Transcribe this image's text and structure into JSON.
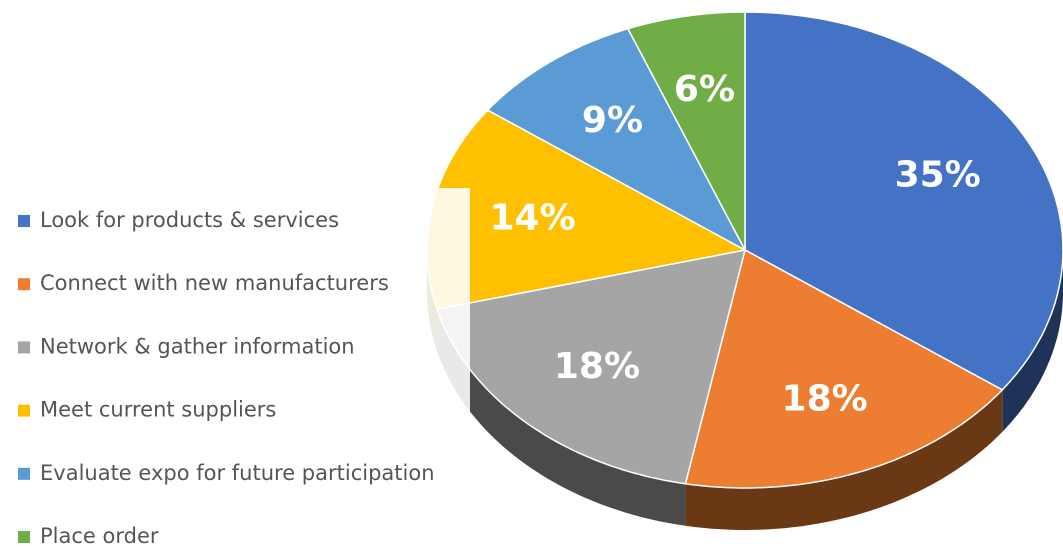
{
  "chart_data": {
    "type": "pie",
    "categories": [
      "Look for products & services",
      "Connect with new manufacturers",
      "Network & gather information",
      "Meet current suppliers",
      "Evaluate expo for future participation",
      "Place order"
    ],
    "values": [
      35,
      18,
      18,
      14,
      9,
      6
    ],
    "value_labels": [
      "35%",
      "18%",
      "18%",
      "14%",
      "9%",
      "6%"
    ],
    "colors": [
      "#4472c4",
      "#ed7d31",
      "#a5a5a5",
      "#ffc000",
      "#5b9bd5",
      "#70ad47"
    ],
    "legend": "left"
  }
}
